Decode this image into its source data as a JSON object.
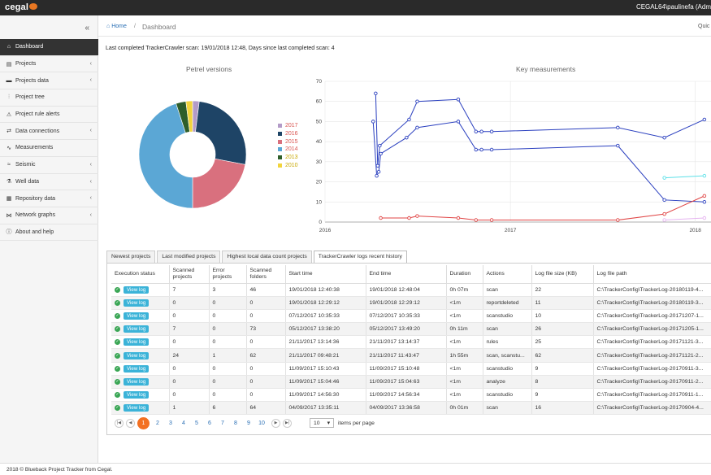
{
  "app": {
    "logo_text": "cegal",
    "user": "CEGAL64\\paulinefa (Adm"
  },
  "sidebar": {
    "collapse_icon": "double-chevron-left-icon",
    "items": [
      {
        "label": "Dashboard",
        "icon": "home-icon",
        "active": true,
        "has_children": false
      },
      {
        "label": "Projects",
        "icon": "book-icon",
        "has_children": true
      },
      {
        "label": "Projects data",
        "icon": "folder-icon",
        "has_children": true
      },
      {
        "label": "Project tree",
        "icon": "sitemap-icon",
        "has_children": false
      },
      {
        "label": "Project rule alerts",
        "icon": "warning-icon",
        "has_children": false
      },
      {
        "label": "Data connections",
        "icon": "exchange-icon",
        "has_children": true
      },
      {
        "label": "Measurements",
        "icon": "line-chart-icon",
        "has_children": false
      },
      {
        "label": "Seismic",
        "icon": "wave-icon",
        "has_children": true
      },
      {
        "label": "Well data",
        "icon": "flask-icon",
        "has_children": true
      },
      {
        "label": "Repository data",
        "icon": "server-icon",
        "has_children": true
      },
      {
        "label": "Network graphs",
        "icon": "network-icon",
        "has_children": true
      },
      {
        "label": "About and help",
        "icon": "info-icon",
        "has_children": false
      }
    ]
  },
  "breadcrumb": {
    "home": "Home",
    "separator": "/",
    "current": "Dashboard",
    "quick": "Quic"
  },
  "scan_info": "Last completed TrackerCrawler scan: 19/01/2018 12:48, Days since last completed scan: 4",
  "chart_data": [
    {
      "type": "pie",
      "title": "Petrel versions",
      "legend_position": "right",
      "series": [
        {
          "name": "2017",
          "value": 2,
          "color": "#b39bc8"
        },
        {
          "name": "2016",
          "value": 26,
          "color": "#1e4466"
        },
        {
          "name": "2015",
          "value": 22,
          "color": "#d9707e"
        },
        {
          "name": "2014",
          "value": 45,
          "color": "#5ba7d5"
        },
        {
          "name": "2013",
          "value": 3,
          "color": "#2e5e2a"
        },
        {
          "name": "2010",
          "value": 2,
          "color": "#f2d43c"
        }
      ]
    },
    {
      "type": "line",
      "title": "Key measurements",
      "xlabels": [
        "2016",
        "2017",
        "2018"
      ],
      "x_range": [
        "2016-01-01",
        "2018-02-01"
      ],
      "ylim": [
        0,
        70
      ],
      "yticks": [
        0,
        10,
        20,
        30,
        40,
        50,
        60,
        70
      ],
      "grid": true,
      "series": [
        {
          "color": "#2a3fbf",
          "points": [
            [
              "2016-04-10",
              64
            ],
            [
              "2016-04-14",
              28
            ],
            [
              "2016-04-18",
              38
            ],
            [
              "2016-06-15",
              51
            ],
            [
              "2016-07-01",
              60
            ],
            [
              "2016-09-20",
              61
            ],
            [
              "2016-10-25",
              45
            ],
            [
              "2016-11-05",
              45
            ],
            [
              "2016-11-25",
              45
            ],
            [
              "2017-08-01",
              47
            ],
            [
              "2017-11-01",
              42
            ],
            [
              "2018-01-19",
              51
            ]
          ]
        },
        {
          "color": "#2a3fbf",
          "points": [
            [
              "2016-04-05",
              50
            ],
            [
              "2016-04-12",
              23
            ],
            [
              "2016-04-16",
              25
            ],
            [
              "2016-04-20",
              34
            ],
            [
              "2016-06-10",
              42
            ],
            [
              "2016-07-01",
              47
            ],
            [
              "2016-09-20",
              50
            ],
            [
              "2016-10-25",
              36
            ],
            [
              "2016-11-05",
              36
            ],
            [
              "2016-11-25",
              36
            ],
            [
              "2017-08-01",
              38
            ],
            [
              "2017-11-01",
              11
            ],
            [
              "2018-01-19",
              10
            ]
          ]
        },
        {
          "color": "#e04545",
          "points": [
            [
              "2016-04-20",
              2
            ],
            [
              "2016-06-15",
              2
            ],
            [
              "2016-07-01",
              3
            ],
            [
              "2016-09-20",
              2
            ],
            [
              "2016-10-25",
              1
            ],
            [
              "2016-11-25",
              1
            ],
            [
              "2017-08-01",
              1
            ],
            [
              "2017-11-01",
              4
            ],
            [
              "2018-01-19",
              13
            ]
          ]
        },
        {
          "color": "#5ce0e8",
          "points": [
            [
              "2017-11-01",
              22
            ],
            [
              "2018-01-19",
              23
            ]
          ]
        },
        {
          "color": "#e6b4f0",
          "points": [
            [
              "2017-11-01",
              1
            ],
            [
              "2018-01-19",
              2
            ]
          ]
        }
      ]
    }
  ],
  "tabs": [
    "Newest projects",
    "Last modified projects",
    "Highest local data count projects",
    "TrackerCrawler logs recent history"
  ],
  "active_tab": 3,
  "table": {
    "headers": [
      "Execution status",
      "Scanned projects",
      "Error projects",
      "Scanned folders",
      "Start time",
      "End time",
      "Duration",
      "Actions",
      "Log file size (KB)",
      "Log file path"
    ],
    "view_label": "View log",
    "status_icon": "check-circle-icon",
    "rows": [
      [
        "7",
        "3",
        "46",
        "19/01/2018 12:40:38",
        "19/01/2018 12:48:04",
        "0h 07m",
        "scan",
        "22",
        "C:\\TrackerConfig\\TrackerLog-20180119-4..."
      ],
      [
        "0",
        "0",
        "0",
        "19/01/2018 12:29:12",
        "19/01/2018 12:29:12",
        "<1m",
        "reportdeleted",
        "11",
        "C:\\TrackerConfig\\TrackerLog-20180119-3..."
      ],
      [
        "0",
        "0",
        "0",
        "07/12/2017 10:35:33",
        "07/12/2017 10:35:33",
        "<1m",
        "scanstudio",
        "10",
        "C:\\TrackerConfig\\TrackerLog-20171207-1..."
      ],
      [
        "7",
        "0",
        "73",
        "05/12/2017 13:38:20",
        "05/12/2017 13:49:20",
        "0h 11m",
        "scan",
        "26",
        "C:\\TrackerConfig\\TrackerLog-20171205-1..."
      ],
      [
        "0",
        "0",
        "0",
        "21/11/2017 13:14:36",
        "21/11/2017 13:14:37",
        "<1m",
        "rules",
        "25",
        "C:\\TrackerConfig\\TrackerLog-20171121-3..."
      ],
      [
        "24",
        "1",
        "62",
        "21/11/2017 09:48:21",
        "21/11/2017 11:43:47",
        "1h 55m",
        "scan, scanstu...",
        "62",
        "C:\\TrackerConfig\\TrackerLog-20171121-2..."
      ],
      [
        "0",
        "0",
        "0",
        "11/09/2017 15:10:43",
        "11/09/2017 15:10:48",
        "<1m",
        "scanstudio",
        "9",
        "C:\\TrackerConfig\\TrackerLog-20170911-3..."
      ],
      [
        "0",
        "0",
        "0",
        "11/09/2017 15:04:46",
        "11/09/2017 15:04:63",
        "<1m",
        "analyze",
        "8",
        "C:\\TrackerConfig\\TrackerLog-20170911-2..."
      ],
      [
        "0",
        "0",
        "0",
        "11/09/2017 14:56:30",
        "11/09/2017 14:56:34",
        "<1m",
        "scanstudio",
        "9",
        "C:\\TrackerConfig\\TrackerLog-20170911-1..."
      ],
      [
        "1",
        "6",
        "64",
        "04/09/2017 13:35:11",
        "04/09/2017 13:36:58",
        "0h 01m",
        "scan",
        "16",
        "C:\\TrackerConfig\\TrackerLog-20170904-4..."
      ]
    ]
  },
  "pager": {
    "pages": [
      "1",
      "2",
      "3",
      "4",
      "5",
      "6",
      "7",
      "8",
      "9",
      "10"
    ],
    "current": "1",
    "page_size": "10",
    "page_size_label": "items per page"
  },
  "footer": "2018 © Blueback Project Tracker from Cegal."
}
